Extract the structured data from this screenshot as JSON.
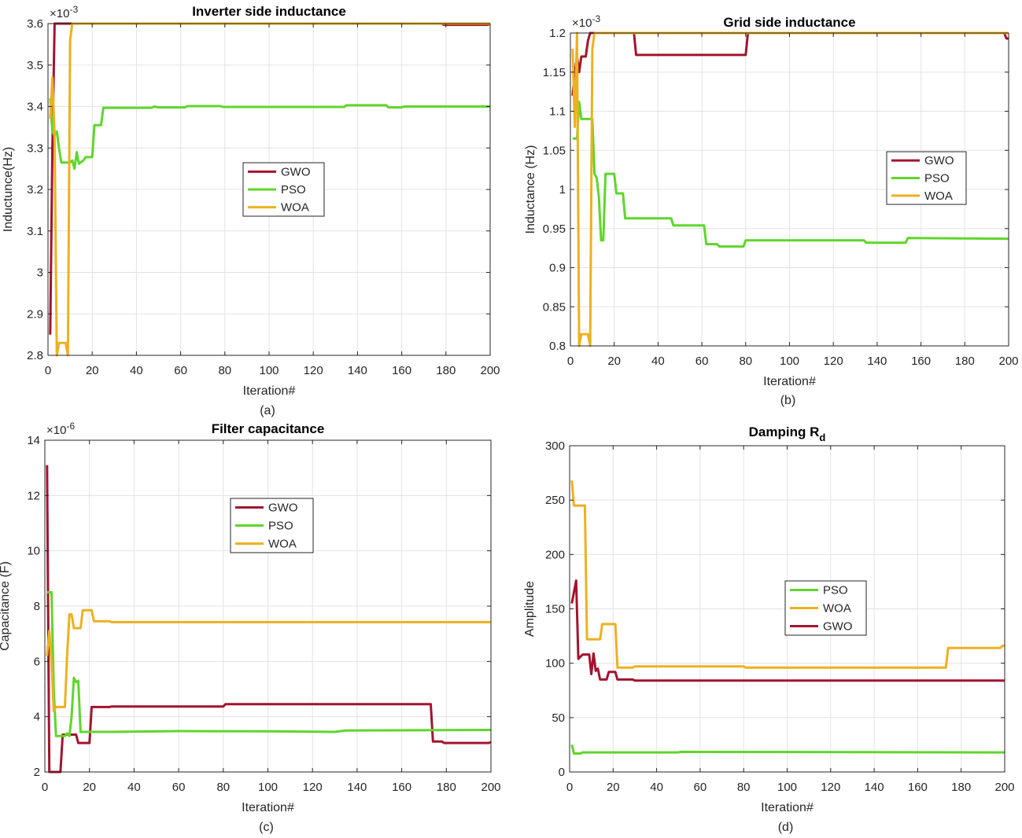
{
  "chart_data": [
    {
      "type": "line",
      "title": "Inverter side inductance",
      "title_sub": "",
      "xlabel": "Iteration#",
      "ylabel": "Inductunce(Hz)",
      "caption": "(a)",
      "exponent": "×10",
      "exponent_power": "-3",
      "xlim": [
        0,
        200
      ],
      "ylim": [
        2.8,
        3.6
      ],
      "xticks": [
        0,
        20,
        40,
        60,
        80,
        100,
        120,
        140,
        160,
        180,
        200
      ],
      "yticks": [
        2.8,
        2.9,
        3,
        3.1,
        3.2,
        3.3,
        3.4,
        3.5,
        3.6
      ],
      "ytick_labels": [
        "2.8",
        "2.9",
        "3",
        "3.1",
        "3.2",
        "3.3",
        "3.4",
        "3.5",
        "3.6"
      ],
      "grid": true,
      "legend_position": "center",
      "series": [
        {
          "name": "GWO",
          "color": "#a2142f",
          "points": [
            [
              1,
              2.85
            ],
            [
              2,
              3.3
            ],
            [
              3,
              3.6
            ],
            [
              50,
              3.6
            ],
            [
              100,
              3.6
            ],
            [
              150,
              3.6
            ],
            [
              178,
              3.6
            ],
            [
              179,
              3.597
            ],
            [
              199,
              3.597
            ],
            [
              200,
              3.6
            ]
          ]
        },
        {
          "name": "PSO",
          "color": "#5fd62c",
          "points": [
            [
              1,
              3.42
            ],
            [
              2,
              3.34
            ],
            [
              3,
              3.33
            ],
            [
              4,
              3.34
            ],
            [
              5,
              3.3
            ],
            [
              6,
              3.265
            ],
            [
              10,
              3.265
            ],
            [
              11,
              3.27
            ],
            [
              12,
              3.25
            ],
            [
              13,
              3.29
            ],
            [
              14,
              3.262
            ],
            [
              16,
              3.27
            ],
            [
              17,
              3.278
            ],
            [
              20,
              3.278
            ],
            [
              21,
              3.355
            ],
            [
              24,
              3.355
            ],
            [
              25,
              3.397
            ],
            [
              47,
              3.397
            ],
            [
              48,
              3.4
            ],
            [
              50,
              3.398
            ],
            [
              62,
              3.398
            ],
            [
              63,
              3.401
            ],
            [
              78,
              3.401
            ],
            [
              79,
              3.399
            ],
            [
              134,
              3.399
            ],
            [
              135,
              3.403
            ],
            [
              153,
              3.403
            ],
            [
              154,
              3.398
            ],
            [
              160,
              3.398
            ],
            [
              161,
              3.4
            ],
            [
              200,
              3.4
            ]
          ]
        },
        {
          "name": "WOA",
          "color": "#edb120",
          "points": [
            [
              1,
              3.37
            ],
            [
              2,
              3.47
            ],
            [
              3,
              3.33
            ],
            [
              4,
              2.8
            ],
            [
              5,
              2.83
            ],
            [
              8,
              2.83
            ],
            [
              9,
              2.8
            ],
            [
              10,
              3.56
            ],
            [
              11,
              3.6
            ],
            [
              200,
              3.6
            ]
          ]
        }
      ]
    },
    {
      "type": "line",
      "title": "Grid side inductance",
      "title_sub": "",
      "xlabel": "Iteration#",
      "ylabel": "Inductance (Hz)",
      "caption": "(b)",
      "exponent": "×10",
      "exponent_power": "-3",
      "xlim": [
        0,
        200
      ],
      "ylim": [
        0.8,
        1.2
      ],
      "xticks": [
        0,
        20,
        40,
        60,
        80,
        100,
        120,
        140,
        160,
        180,
        200
      ],
      "yticks": [
        0.8,
        0.85,
        0.9,
        0.95,
        1,
        1.05,
        1.1,
        1.15,
        1.2
      ],
      "ytick_labels": [
        "0.8",
        "0.85",
        "0.9",
        "0.95",
        "1",
        "1.05",
        "1.1",
        "1.15",
        "1.2"
      ],
      "grid": true,
      "legend_position": "right",
      "series": [
        {
          "name": "GWO",
          "color": "#a2142f",
          "points": [
            [
              1,
              1.12
            ],
            [
              2,
              1.15
            ],
            [
              3,
              1.17
            ],
            [
              4,
              1.15
            ],
            [
              5,
              1.17
            ],
            [
              7,
              1.17
            ],
            [
              8,
              1.19
            ],
            [
              9,
              1.2
            ],
            [
              29,
              1.2
            ],
            [
              30,
              1.172
            ],
            [
              80,
              1.172
            ],
            [
              81,
              1.2
            ],
            [
              198,
              1.2
            ],
            [
              199,
              1.193
            ],
            [
              200,
              1.193
            ]
          ]
        },
        {
          "name": "PSO",
          "color": "#5fd62c",
          "points": [
            [
              1,
              1.065
            ],
            [
              3,
              1.065
            ],
            [
              4,
              1.112
            ],
            [
              5,
              1.09
            ],
            [
              10,
              1.09
            ],
            [
              11,
              1.02
            ],
            [
              12,
              1.015
            ],
            [
              13,
              0.99
            ],
            [
              14,
              0.935
            ],
            [
              15,
              0.935
            ],
            [
              16,
              1.02
            ],
            [
              20,
              1.02
            ],
            [
              21,
              0.995
            ],
            [
              24,
              0.995
            ],
            [
              25,
              0.963
            ],
            [
              46,
              0.963
            ],
            [
              47,
              0.954
            ],
            [
              61,
              0.954
            ],
            [
              62,
              0.93
            ],
            [
              67,
              0.93
            ],
            [
              68,
              0.927
            ],
            [
              79,
              0.927
            ],
            [
              80,
              0.935
            ],
            [
              134,
              0.935
            ],
            [
              135,
              0.932
            ],
            [
              153,
              0.932
            ],
            [
              154,
              0.938
            ],
            [
              200,
              0.937
            ]
          ]
        },
        {
          "name": "WOA",
          "color": "#edb120",
          "points": [
            [
              1,
              1.18
            ],
            [
              2,
              1.08
            ],
            [
              3,
              1.2
            ],
            [
              4,
              0.8
            ],
            [
              5,
              0.815
            ],
            [
              8,
              0.815
            ],
            [
              9,
              0.8
            ],
            [
              10,
              1.18
            ],
            [
              11,
              1.2
            ],
            [
              200,
              1.2
            ]
          ]
        }
      ]
    },
    {
      "type": "line",
      "title": "Filter capacitance",
      "title_sub": "",
      "xlabel": "Iteration#",
      "ylabel": "Capacitance (F)",
      "caption": "(c)",
      "exponent": "×10",
      "exponent_power": "-6",
      "xlim": [
        0,
        200
      ],
      "ylim": [
        2,
        14
      ],
      "xticks": [
        0,
        20,
        40,
        60,
        80,
        100,
        120,
        140,
        160,
        180,
        200
      ],
      "yticks": [
        2,
        4,
        6,
        8,
        10,
        12,
        14
      ],
      "ytick_labels": [
        "2",
        "4",
        "6",
        "8",
        "10",
        "12",
        "14"
      ],
      "grid": true,
      "legend_position": "center",
      "series": [
        {
          "name": "GWO",
          "color": "#a2142f",
          "points": [
            [
              1,
              13.1
            ],
            [
              2,
              2
            ],
            [
              7,
              2
            ],
            [
              8,
              3.35
            ],
            [
              14,
              3.35
            ],
            [
              15,
              3.05
            ],
            [
              20,
              3.05
            ],
            [
              21,
              4.35
            ],
            [
              29,
              4.35
            ],
            [
              30,
              4.37
            ],
            [
              80,
              4.37
            ],
            [
              81,
              4.45
            ],
            [
              173,
              4.45
            ],
            [
              174,
              3.1
            ],
            [
              178,
              3.1
            ],
            [
              179,
              3.05
            ],
            [
              199,
              3.05
            ],
            [
              200,
              3.08
            ]
          ]
        },
        {
          "name": "PSO",
          "color": "#5fd62c",
          "points": [
            [
              1,
              8.5
            ],
            [
              3,
              8.5
            ],
            [
              4,
              5.0
            ],
            [
              5,
              3.3
            ],
            [
              9,
              3.3
            ],
            [
              10,
              3.4
            ],
            [
              11,
              3.3
            ],
            [
              12,
              4.0
            ],
            [
              13,
              5.4
            ],
            [
              14,
              5.25
            ],
            [
              15,
              5.3
            ],
            [
              16,
              3.45
            ],
            [
              30,
              3.45
            ],
            [
              60,
              3.48
            ],
            [
              100,
              3.47
            ],
            [
              130,
              3.45
            ],
            [
              135,
              3.5
            ],
            [
              200,
              3.52
            ]
          ]
        },
        {
          "name": "WOA",
          "color": "#edb120",
          "points": [
            [
              1,
              6.2
            ],
            [
              2,
              7.1
            ],
            [
              3,
              6.0
            ],
            [
              4,
              4.2
            ],
            [
              5,
              4.35
            ],
            [
              9,
              4.35
            ],
            [
              10,
              6.2
            ],
            [
              11,
              7.7
            ],
            [
              12,
              7.7
            ],
            [
              13,
              7.2
            ],
            [
              16,
              7.2
            ],
            [
              17,
              7.85
            ],
            [
              21,
              7.85
            ],
            [
              22,
              7.45
            ],
            [
              29,
              7.45
            ],
            [
              30,
              7.42
            ],
            [
              200,
              7.42
            ]
          ]
        }
      ]
    },
    {
      "type": "line",
      "title": "Damping R",
      "title_sub": "d",
      "xlabel": "Iteration#",
      "ylabel": "Amplitude",
      "caption": "(d)",
      "exponent": "",
      "exponent_power": "",
      "xlim": [
        0,
        200
      ],
      "ylim": [
        0,
        300
      ],
      "xticks": [
        0,
        20,
        40,
        60,
        80,
        100,
        120,
        140,
        160,
        180,
        200
      ],
      "yticks": [
        0,
        50,
        100,
        150,
        200,
        250,
        300
      ],
      "ytick_labels": [
        "0",
        "50",
        "100",
        "150",
        "200",
        "250",
        "300"
      ],
      "grid": true,
      "legend_position": "center",
      "series": [
        {
          "name": "PSO",
          "color": "#5fd62c",
          "points": [
            [
              1,
              25
            ],
            [
              2,
              17
            ],
            [
              5,
              17
            ],
            [
              6,
              18
            ],
            [
              50,
              18
            ],
            [
              51,
              18.5
            ],
            [
              200,
              18
            ]
          ]
        },
        {
          "name": "WOA",
          "color": "#edb120",
          "points": [
            [
              1,
              268
            ],
            [
              2,
              245
            ],
            [
              7,
              245
            ],
            [
              8,
              122
            ],
            [
              14,
              122
            ],
            [
              15,
              136
            ],
            [
              21,
              136
            ],
            [
              22,
              96
            ],
            [
              29,
              96
            ],
            [
              30,
              97
            ],
            [
              80,
              97
            ],
            [
              81,
              96
            ],
            [
              173,
              96
            ],
            [
              174,
              114
            ],
            [
              198,
              114
            ],
            [
              199,
              116
            ],
            [
              200,
              116
            ]
          ]
        },
        {
          "name": "GWO",
          "color": "#a2142f",
          "points": [
            [
              1,
              155
            ],
            [
              3,
              176
            ],
            [
              4,
              104
            ],
            [
              6,
              108
            ],
            [
              9,
              108
            ],
            [
              10,
              90
            ],
            [
              11,
              109
            ],
            [
              12,
              93
            ],
            [
              13,
              95
            ],
            [
              14,
              85
            ],
            [
              17,
              85
            ],
            [
              18,
              92
            ],
            [
              21,
              92
            ],
            [
              22,
              85
            ],
            [
              29,
              85
            ],
            [
              30,
              84
            ],
            [
              200,
              84
            ]
          ]
        }
      ]
    }
  ]
}
